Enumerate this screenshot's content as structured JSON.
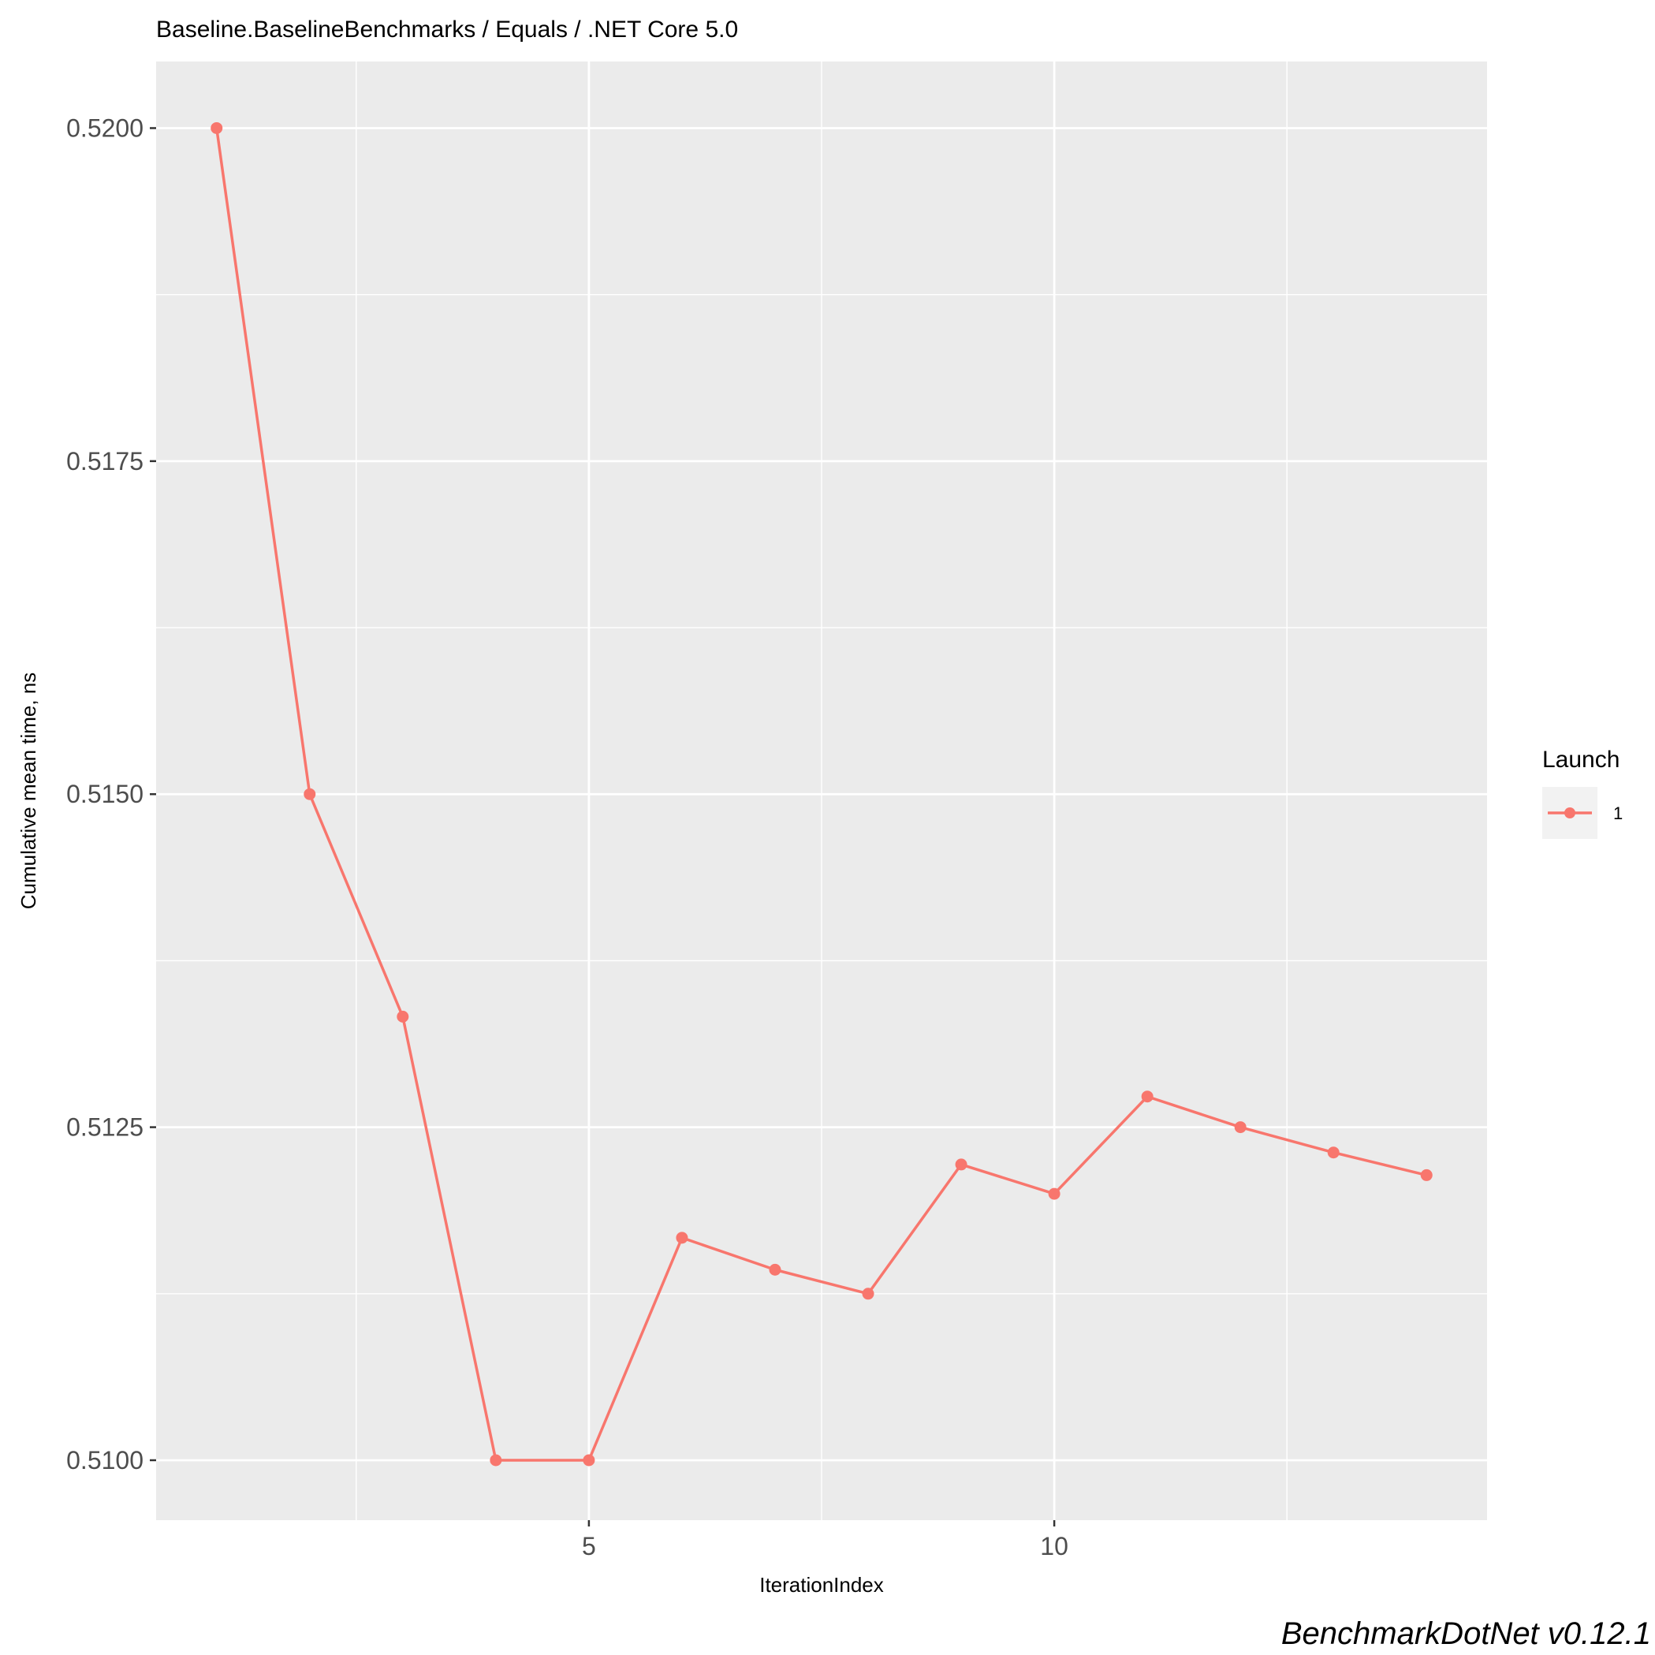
{
  "chart_data": {
    "type": "line",
    "title": "Baseline.BaselineBenchmarks / Equals / .NET Core 5.0",
    "xlabel": "IterationIndex",
    "ylabel": "Cumulative mean time, ns",
    "caption": "BenchmarkDotNet v0.12.1",
    "x": [
      1,
      2,
      3,
      4,
      5,
      6,
      7,
      8,
      9,
      10,
      11,
      12,
      13,
      14
    ],
    "xlim": [
      0.35,
      14.65
    ],
    "ylim": [
      0.50955,
      0.5205
    ],
    "x_ticks": [
      5,
      10
    ],
    "x_tick_labels": [
      "5",
      "10"
    ],
    "x_minor_ticks": [
      2.5,
      7.5,
      12.5
    ],
    "y_ticks": [
      0.51,
      0.5125,
      0.515,
      0.5175,
      0.52
    ],
    "y_tick_labels": [
      "0.5100",
      "0.5125",
      "0.5150",
      "0.5175",
      "0.5200"
    ],
    "y_minor_ticks": [
      0.51125,
      0.51375,
      0.51625,
      0.51875
    ],
    "grid": true,
    "legend": {
      "title": "Launch",
      "placement": "right",
      "entries": [
        "1"
      ]
    },
    "series": [
      {
        "name": "1",
        "color": "#F8766D",
        "values": [
          0.52,
          0.515,
          0.51333,
          0.51,
          0.51,
          0.51167,
          0.51143,
          0.51125,
          0.51222,
          0.512,
          0.51273,
          0.5125,
          0.51231,
          0.51214
        ]
      }
    ]
  },
  "colors": {
    "panel": "#EBEBEB",
    "grid": "#FFFFFF",
    "series": "#F8766D",
    "tick_text": "#4D4D4D"
  }
}
